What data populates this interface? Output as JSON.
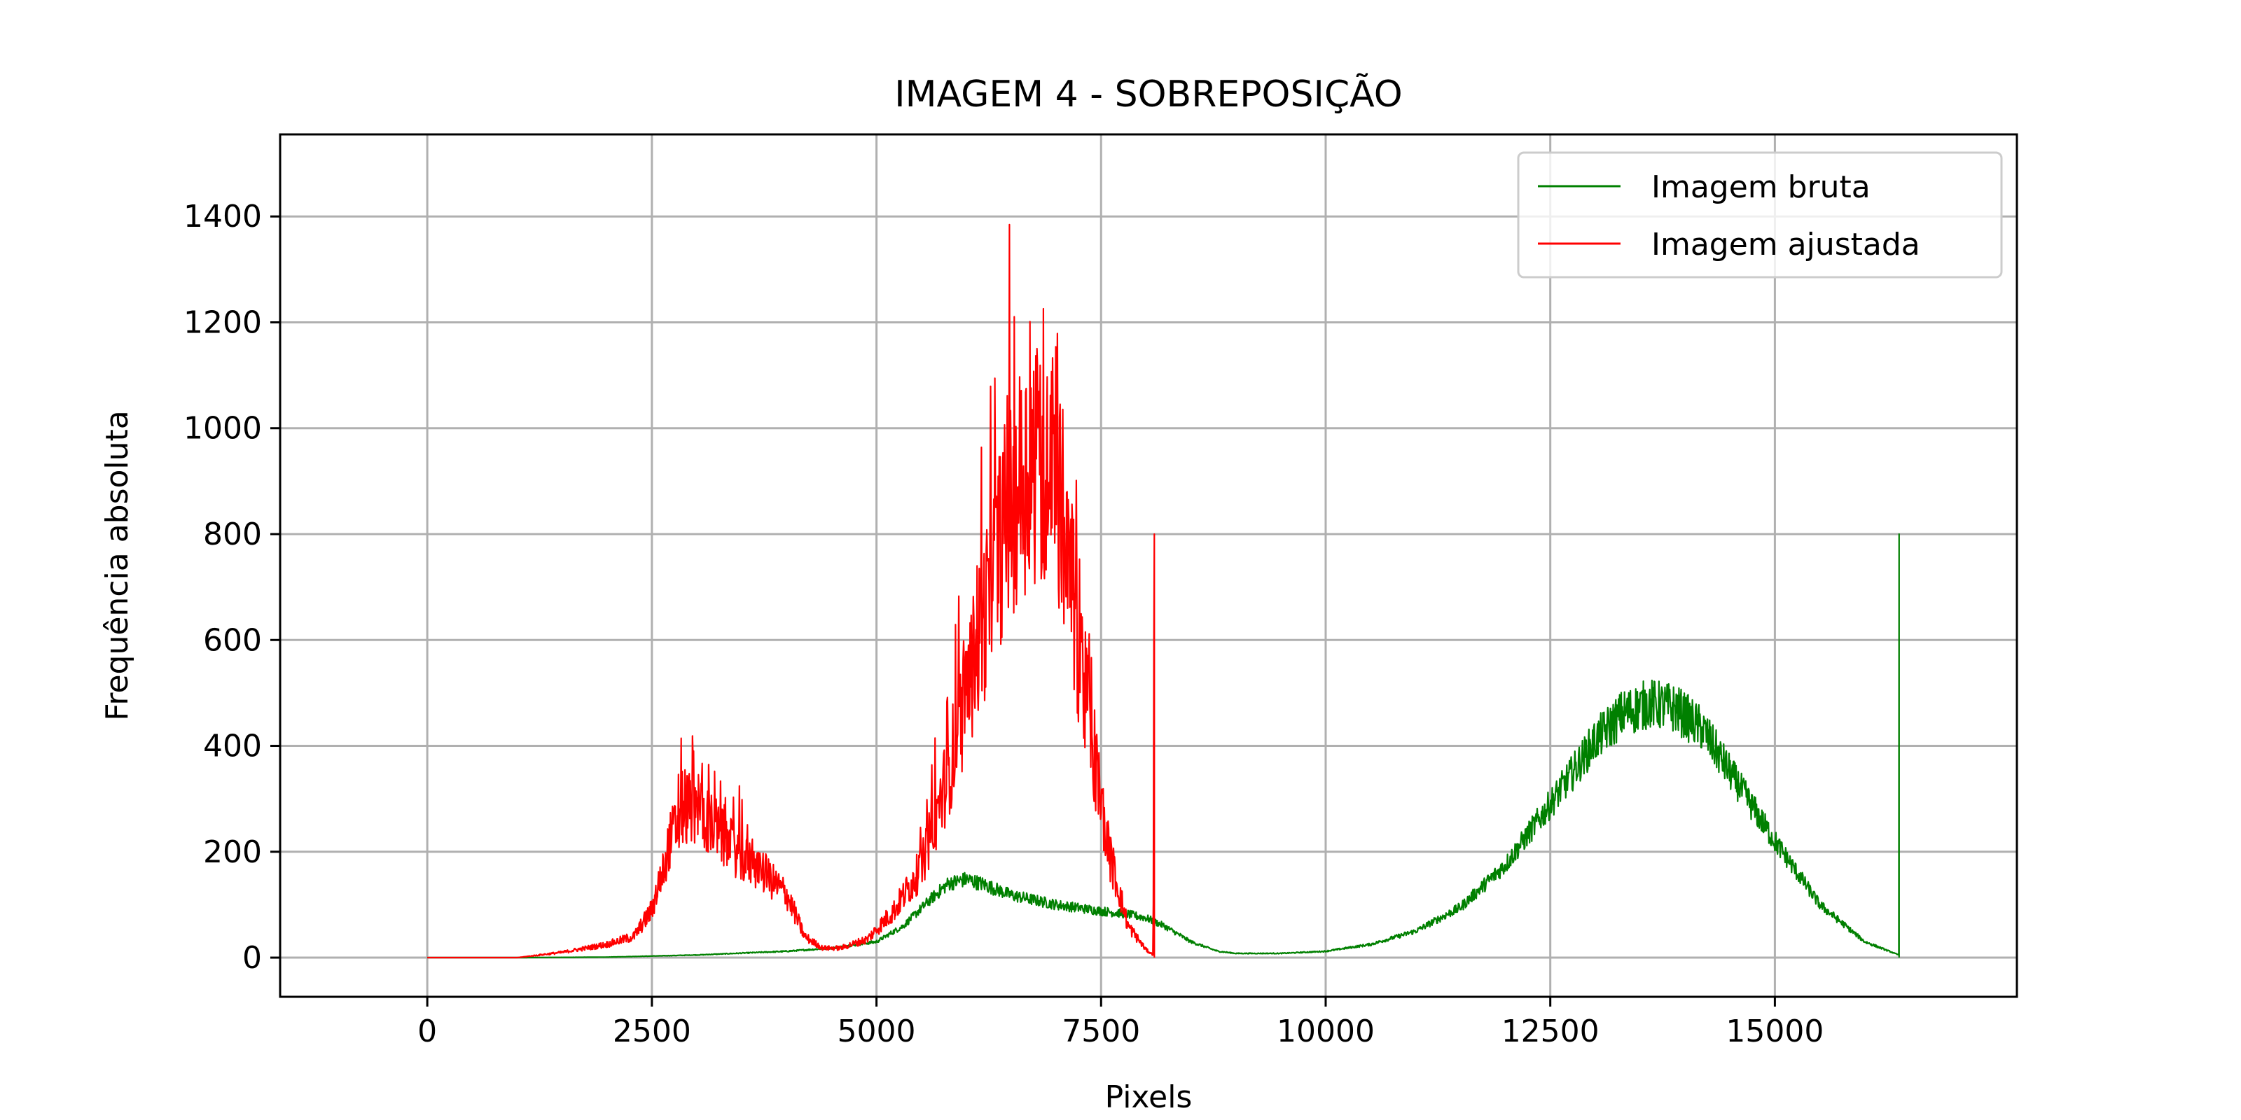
{
  "chart_data": {
    "type": "line",
    "title": "IMAGEM 4 - SOBREPOSIÇÃO",
    "xlabel": "Pixels",
    "ylabel": "Frequência absoluta",
    "xlim": [
      -1638,
      17694
    ],
    "ylim": [
      -74,
      1555
    ],
    "xticks": [
      0,
      2500,
      5000,
      7500,
      10000,
      12500,
      15000
    ],
    "xtick_labels": [
      "0",
      "2500",
      "5000",
      "7500",
      "10000",
      "12500",
      "15000"
    ],
    "yticks": [
      0,
      200,
      400,
      600,
      800,
      1000,
      1200,
      1400
    ],
    "ytick_labels": [
      "0",
      "200",
      "400",
      "600",
      "800",
      "1000",
      "1200",
      "1400"
    ],
    "grid": true,
    "legend_position": "top-right",
    "series": [
      {
        "name": "Imagem bruta",
        "color": "#008000",
        "x": [
          0,
          1000,
          2000,
          3000,
          4000,
          4500,
          5000,
          5300,
          5600,
          5800,
          6000,
          6200,
          6500,
          7000,
          7500,
          7800,
          8000,
          8200,
          8500,
          8800,
          9000,
          9500,
          10000,
          10500,
          11000,
          11500,
          12000,
          12500,
          13000,
          13300,
          13600,
          13900,
          14200,
          14500,
          15000,
          15500,
          16000,
          16380,
          16383
        ],
        "y": [
          0,
          0,
          1,
          5,
          12,
          18,
          30,
          60,
          110,
          140,
          148,
          138,
          118,
          100,
          88,
          82,
          75,
          60,
          30,
          12,
          8,
          8,
          12,
          25,
          50,
          95,
          175,
          290,
          410,
          460,
          480,
          470,
          430,
          350,
          220,
          100,
          30,
          5,
          800
        ],
        "noise_amplitude": 0.1
      },
      {
        "name": "Imagem ajustada",
        "color": "#ff0000",
        "x": [
          0,
          1000,
          1500,
          2000,
          2300,
          2500,
          2700,
          2850,
          3000,
          3200,
          3500,
          3800,
          4000,
          4200,
          4400,
          4600,
          4900,
          5200,
          5500,
          5800,
          6000,
          6200,
          6400,
          6600,
          6800,
          7000,
          7200,
          7400,
          7600,
          7800,
          8000,
          8080,
          8093,
          8096
        ],
        "y": [
          0,
          0,
          10,
          25,
          40,
          90,
          220,
          280,
          290,
          240,
          190,
          150,
          120,
          40,
          18,
          18,
          35,
          90,
          170,
          350,
          500,
          640,
          800,
          900,
          950,
          900,
          650,
          400,
          190,
          60,
          15,
          5,
          800,
          0
        ],
        "noise_amplitude": 0.25,
        "spike_amplitude": 0.45
      }
    ]
  }
}
